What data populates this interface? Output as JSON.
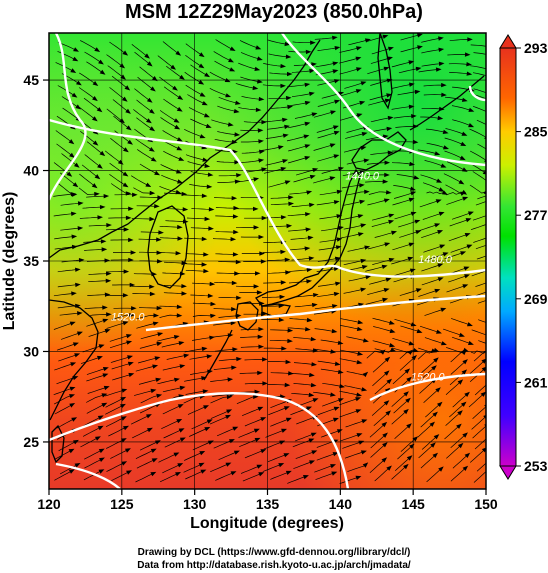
{
  "title": "MSM 12Z29May2023 (850.0hPa)",
  "x_axis": {
    "label": "Longitude (degrees)",
    "range": [
      120,
      150
    ],
    "ticks": [
      "120",
      "125",
      "130",
      "135",
      "140",
      "145",
      "150"
    ]
  },
  "y_axis": {
    "label": "Latitude  (degrees)",
    "range": [
      22.4,
      47.6
    ],
    "ticks": [
      "25",
      "30",
      "35",
      "40",
      "45"
    ]
  },
  "colorbar": {
    "range": [
      253,
      293
    ],
    "ticks": [
      "253",
      "261",
      "269",
      "277",
      "285",
      "293"
    ],
    "colors": [
      "#cc00cc",
      "#0000ff",
      "#00ccff",
      "#00e07a",
      "#33e633",
      "#ccf000",
      "#ffa000",
      "#ff3300",
      "#e8321e"
    ]
  },
  "contour_labels": [
    {
      "text": "1440.0",
      "lon": 141.5,
      "lat": 39.5
    },
    {
      "text": "1480.0",
      "lon": 146.5,
      "lat": 34.9
    },
    {
      "text": "1520.0",
      "lon": 125.4,
      "lat": 31.7
    },
    {
      "text": "1520.0",
      "lon": 146.0,
      "lat": 28.4
    }
  ],
  "credits": [
    "Drawing by DCL (https://www.gfd-dennou.org/library/dcl/)",
    "Data from http://database.rish.kyoto-u.ac.jp/arch/jmadata/"
  ],
  "colors": {
    "coast": "#000000",
    "contour": "#ffffff",
    "grid": "#000000"
  }
}
